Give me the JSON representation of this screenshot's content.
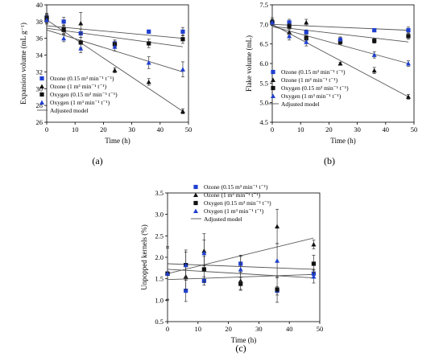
{
  "legend_labels": {
    "ozone_015": "Ozone (0.15 m³ min⁻¹ t⁻¹)",
    "ozone_1": "Ozone (1 m³ min⁻¹ t⁻¹)",
    "oxygen_015": "Oxygen (0.15 m³ min⁻¹ t⁻¹)",
    "oxygen_1": "Oxygen (1 m³ min⁻¹ t⁻¹)",
    "model": "Adjusted model"
  },
  "colors": {
    "blue": "#1f3fd0",
    "black": "#111111",
    "model_line": "#555555"
  },
  "chart_data": [
    {
      "panel": "(a)",
      "type": "scatter",
      "xlabel": "Time (h)",
      "ylabel": "Expansion volume (mL g⁻¹)",
      "xlim": [
        0,
        50
      ],
      "ylim": [
        26,
        40
      ],
      "xticks": [
        0,
        10,
        20,
        30,
        40,
        50
      ],
      "yticks": [
        26,
        28,
        30,
        32,
        34,
        36,
        38,
        40
      ],
      "x": [
        0,
        6,
        12,
        24,
        36,
        48
      ],
      "legend_position": "bottom-left",
      "series": [
        {
          "key": "ozone_015",
          "marker": "square",
          "color": "blue",
          "y": [
            38.5,
            38.0,
            36.6,
            35.4,
            36.8,
            36.8
          ],
          "err": [
            0.5,
            0.5,
            0.5,
            0.4,
            0.2,
            0.5
          ],
          "model": [
            37.5,
            36.0
          ]
        },
        {
          "key": "ozone_1",
          "marker": "triangle",
          "color": "black",
          "y": [
            38.3,
            37.0,
            37.8,
            32.2,
            30.8,
            27.3
          ],
          "err": [
            0.5,
            0.5,
            1.3,
            0.3,
            0.4,
            0.3
          ],
          "model": [
            38.2,
            27.3
          ]
        },
        {
          "key": "oxygen_015",
          "marker": "square",
          "color": "black",
          "y": [
            38.4,
            37.1,
            35.5,
            35.3,
            35.4,
            35.9
          ],
          "err": [
            0.5,
            0.5,
            0.6,
            0.5,
            0.5,
            0.5
          ],
          "model": [
            37.2,
            35.0
          ]
        },
        {
          "key": "oxygen_1",
          "marker": "triangle",
          "color": "blue",
          "y": [
            38.2,
            36.0,
            34.8,
            35.0,
            33.1,
            32.3
          ],
          "err": [
            0.5,
            0.4,
            0.5,
            0.5,
            0.7,
            0.9
          ],
          "model": [
            37.0,
            32.0
          ]
        }
      ]
    },
    {
      "panel": "(b)",
      "type": "scatter",
      "xlabel": "Time (h)",
      "ylabel": "Flake volume (mL)",
      "xlim": [
        0,
        50
      ],
      "ylim": [
        4.5,
        7.5
      ],
      "xticks": [
        0,
        10,
        20,
        30,
        40,
        50
      ],
      "yticks": [
        4.5,
        5.0,
        5.5,
        6.0,
        6.5,
        7.0,
        7.5
      ],
      "x": [
        0,
        6,
        12,
        24,
        36,
        48
      ],
      "legend_position": "bottom-left",
      "series": [
        {
          "key": "ozone_015",
          "marker": "square",
          "color": "blue",
          "y": [
            7.05,
            7.05,
            6.8,
            6.6,
            6.85,
            6.85
          ],
          "err": [
            0.08,
            0.08,
            0.06,
            0.06,
            0.04,
            0.08
          ],
          "model": [
            7.0,
            6.85
          ]
        },
        {
          "key": "ozone_1",
          "marker": "triangle",
          "color": "black",
          "y": [
            7.1,
            6.8,
            7.05,
            6.0,
            5.82,
            5.15
          ],
          "err": [
            0.07,
            0.08,
            0.08,
            0.03,
            0.08,
            0.06
          ],
          "model": [
            7.0,
            5.15
          ]
        },
        {
          "key": "oxygen_015",
          "marker": "square",
          "color": "black",
          "y": [
            7.05,
            6.95,
            6.65,
            6.55,
            6.58,
            6.7
          ],
          "err": [
            0.07,
            0.07,
            0.06,
            0.06,
            0.06,
            0.08
          ],
          "model": [
            6.95,
            6.55
          ]
        },
        {
          "key": "oxygen_1",
          "marker": "triangle",
          "color": "blue",
          "y": [
            7.05,
            6.7,
            6.55,
            6.62,
            6.22,
            6.0
          ],
          "err": [
            0.07,
            0.1,
            0.1,
            0.06,
            0.08,
            0.07
          ],
          "model": [
            6.95,
            6.0
          ]
        }
      ]
    },
    {
      "panel": "(c)",
      "type": "scatter",
      "xlabel": "Time (h)",
      "ylabel": "Unpopped kernels (%)",
      "xlim": [
        0,
        50
      ],
      "ylim": [
        0.5,
        3.5
      ],
      "xticks": [
        0,
        10,
        20,
        30,
        40,
        50
      ],
      "yticks": [
        0.5,
        1.0,
        1.5,
        2.0,
        2.5,
        3.0,
        3.5
      ],
      "x": [
        0,
        6,
        12,
        24,
        36,
        48
      ],
      "legend_position": "top-right",
      "series": [
        {
          "key": "ozone_015",
          "marker": "square",
          "color": "blue",
          "y": [
            1.62,
            1.22,
            1.45,
            1.85,
            1.22,
            1.62
          ],
          "err": [
            0.63,
            0.25,
            0.1,
            0.2,
            0.1,
            0.1
          ],
          "model": [
            1.48,
            1.6
          ]
        },
        {
          "key": "ozone_1",
          "marker": "triangle",
          "color": "black",
          "y": [
            1.62,
            1.55,
            2.15,
            1.45,
            2.72,
            2.3
          ],
          "err": [
            0.6,
            0.3,
            0.4,
            0.2,
            0.4,
            0.1
          ],
          "model": [
            1.62,
            2.45
          ]
        },
        {
          "key": "oxygen_015",
          "marker": "square",
          "color": "black",
          "y": [
            1.62,
            1.82,
            1.72,
            1.38,
            1.25,
            1.85
          ],
          "err": [
            0.6,
            0.35,
            0.3,
            0.15,
            0.3,
            0.2
          ],
          "model": [
            1.72,
            1.52
          ]
        },
        {
          "key": "oxygen_1",
          "marker": "triangle",
          "color": "blue",
          "y": [
            1.62,
            1.82,
            2.1,
            1.72,
            1.92,
            1.55
          ],
          "err": [
            0.6,
            0.3,
            0.3,
            0.3,
            0.4,
            0.15
          ],
          "model": [
            1.85,
            1.72
          ]
        }
      ]
    }
  ]
}
